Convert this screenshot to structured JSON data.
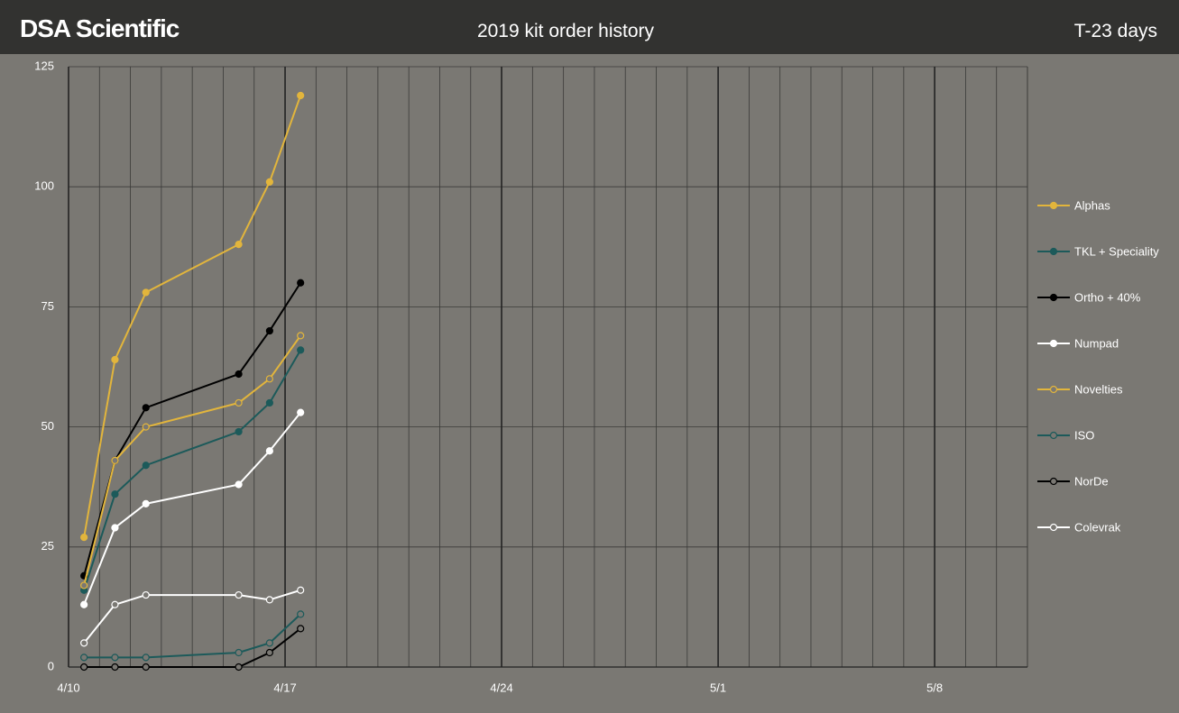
{
  "header": {
    "brand": "DSA Scientific",
    "status": "T-23 days"
  },
  "chart_data": {
    "type": "line",
    "title": "2019 kit order history",
    "x": [
      0.5,
      1.5,
      2.5,
      5.5,
      6.5,
      7.5
    ],
    "xlim": [
      0,
      31
    ],
    "xticks": [
      {
        "value": 0,
        "label": "4/10"
      },
      {
        "value": 7,
        "label": "4/17"
      },
      {
        "value": 14,
        "label": "4/24"
      },
      {
        "value": 21,
        "label": "5/1"
      },
      {
        "value": 28,
        "label": "5/8"
      }
    ],
    "ylim": [
      0,
      125
    ],
    "yticks": [
      0,
      25,
      50,
      75,
      100,
      125
    ],
    "grid": true,
    "legend": "right",
    "series": [
      {
        "name": "Alphas",
        "color": "#e2b53c",
        "marker": "filled",
        "values": [
          27,
          64,
          78,
          88,
          101,
          119
        ]
      },
      {
        "name": "TKL + Speciality",
        "color": "#1c5a5a",
        "marker": "filled",
        "values": [
          16,
          36,
          42,
          49,
          55,
          66
        ]
      },
      {
        "name": "Ortho + 40%",
        "color": "#000000",
        "marker": "filled",
        "values": [
          19,
          43,
          54,
          61,
          70,
          80
        ]
      },
      {
        "name": "Numpad",
        "color": "#ffffff",
        "marker": "filled",
        "values": [
          13,
          29,
          34,
          38,
          45,
          53
        ]
      },
      {
        "name": "Novelties",
        "color": "#e2b53c",
        "marker": "hollow",
        "values": [
          17,
          43,
          50,
          55,
          60,
          69
        ]
      },
      {
        "name": "ISO",
        "color": "#1c5a5a",
        "marker": "hollow",
        "values": [
          2,
          2,
          2,
          3,
          5,
          11
        ]
      },
      {
        "name": "NorDe",
        "color": "#000000",
        "marker": "hollow",
        "values": [
          0,
          0,
          0,
          0,
          3,
          8
        ]
      },
      {
        "name": "Colevrak",
        "color": "#ffffff",
        "marker": "hollow",
        "values": [
          5,
          13,
          15,
          15,
          14,
          16
        ]
      }
    ]
  }
}
